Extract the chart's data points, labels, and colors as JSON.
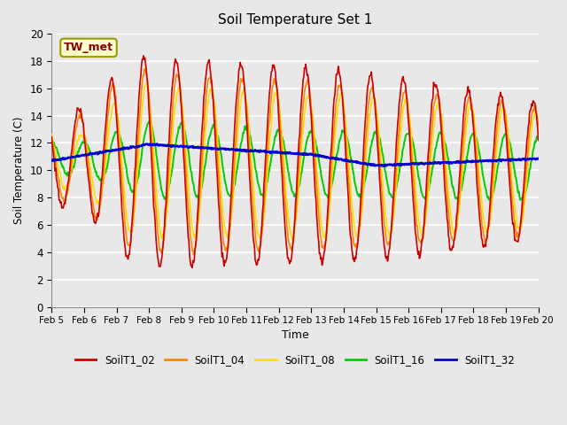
{
  "title": "Soil Temperature Set 1",
  "xlabel": "Time",
  "ylabel": "Soil Temperature (C)",
  "ylim": [
    0,
    20
  ],
  "xlim": [
    0,
    360
  ],
  "annotation": "TW_met",
  "plot_bg": "#e8e8e8",
  "fig_bg": "#e8e8e8",
  "series_colors": {
    "SoilT1_02": "#cc0000",
    "SoilT1_04": "#ff8800",
    "SoilT1_08": "#ffdd00",
    "SoilT1_16": "#00cc00",
    "SoilT1_32": "#0000cc"
  },
  "x_ticks": [
    0,
    24,
    48,
    72,
    96,
    120,
    144,
    168,
    192,
    216,
    240,
    264,
    288,
    312,
    336,
    360
  ],
  "x_tick_labels": [
    "Feb 5",
    "Feb 6",
    "Feb 7",
    "Feb 8",
    "Feb 9",
    "Feb 10",
    "Feb 11",
    "Feb 12",
    "Feb 13",
    "Feb 14",
    "Feb 15",
    "Feb 16",
    "Feb 17",
    "Feb 18",
    "Feb 19",
    "Feb 20"
  ],
  "yticks": [
    0,
    2,
    4,
    6,
    8,
    10,
    12,
    14,
    16,
    18,
    20
  ]
}
